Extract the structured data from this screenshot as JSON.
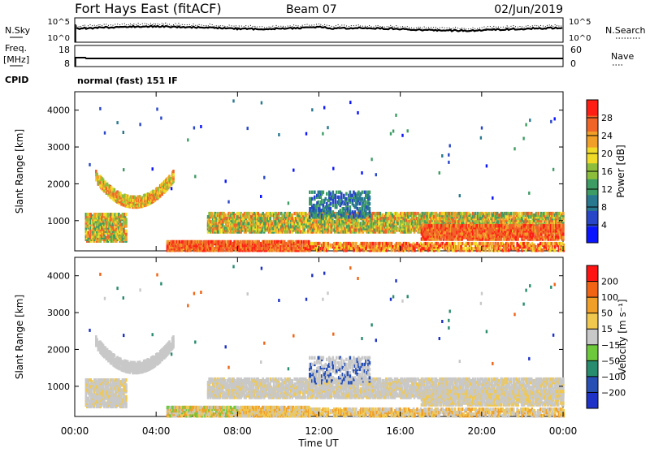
{
  "header": {
    "site": "Fort Hays East (fitACF)",
    "beam": "Beam 07",
    "date": "02/Jun/2019"
  },
  "noise_panel": {
    "left_label": "N.Sky",
    "right_label": "N.Search",
    "left_ticks": [
      "10^5",
      "10^0"
    ],
    "right_ticks": [
      "10^5",
      "10^0"
    ]
  },
  "freq_panel": {
    "left_label_1": "Freq.",
    "left_label_2": "[MHz]",
    "right_label": "Nave",
    "left_ticks": [
      "18",
      "8"
    ],
    "right_ticks": [
      "60",
      "0"
    ]
  },
  "cpid": {
    "label": "CPID",
    "value": "normal (fast) 151 IF"
  },
  "chart_data": [
    {
      "type": "heatmap",
      "name": "power",
      "ylabel": "Slant Range [km]",
      "yticks": [
        1000,
        2000,
        3000,
        4000
      ],
      "ylim": [
        180,
        4500
      ],
      "colorbar_label": "Power [dB]",
      "colorbar_ticks": [
        4,
        8,
        12,
        16,
        20,
        24,
        28
      ],
      "colorbar_range": [
        0,
        32
      ],
      "colors": [
        "#0a14ff",
        "#2846c8",
        "#287890",
        "#3c9c64",
        "#8cbe3c",
        "#f0dc28",
        "#f0a028",
        "#f06428",
        "#ff1e14"
      ]
    },
    {
      "type": "heatmap",
      "name": "velocity",
      "ylabel": "Slant Range [km]",
      "yticks": [
        1000,
        2000,
        3000,
        4000
      ],
      "ylim": [
        180,
        4500
      ],
      "colorbar_label": "Velocity [m s⁻¹]",
      "colorbar_ticks": [
        "200",
        "100",
        "50",
        "15",
        "−15",
        "−50",
        "−100",
        "−200"
      ],
      "colors": [
        "#1e32c8",
        "#2850b4",
        "#288c6e",
        "#6ec83c",
        "#c8c8c8",
        "#f0c850",
        "#f0a028",
        "#f06414",
        "#ff1414"
      ]
    }
  ],
  "time_axis": {
    "label": "Time UT",
    "ticks": [
      "00:00",
      "04:00",
      "08:00",
      "12:00",
      "16:00",
      "20:00",
      "00:00"
    ]
  }
}
